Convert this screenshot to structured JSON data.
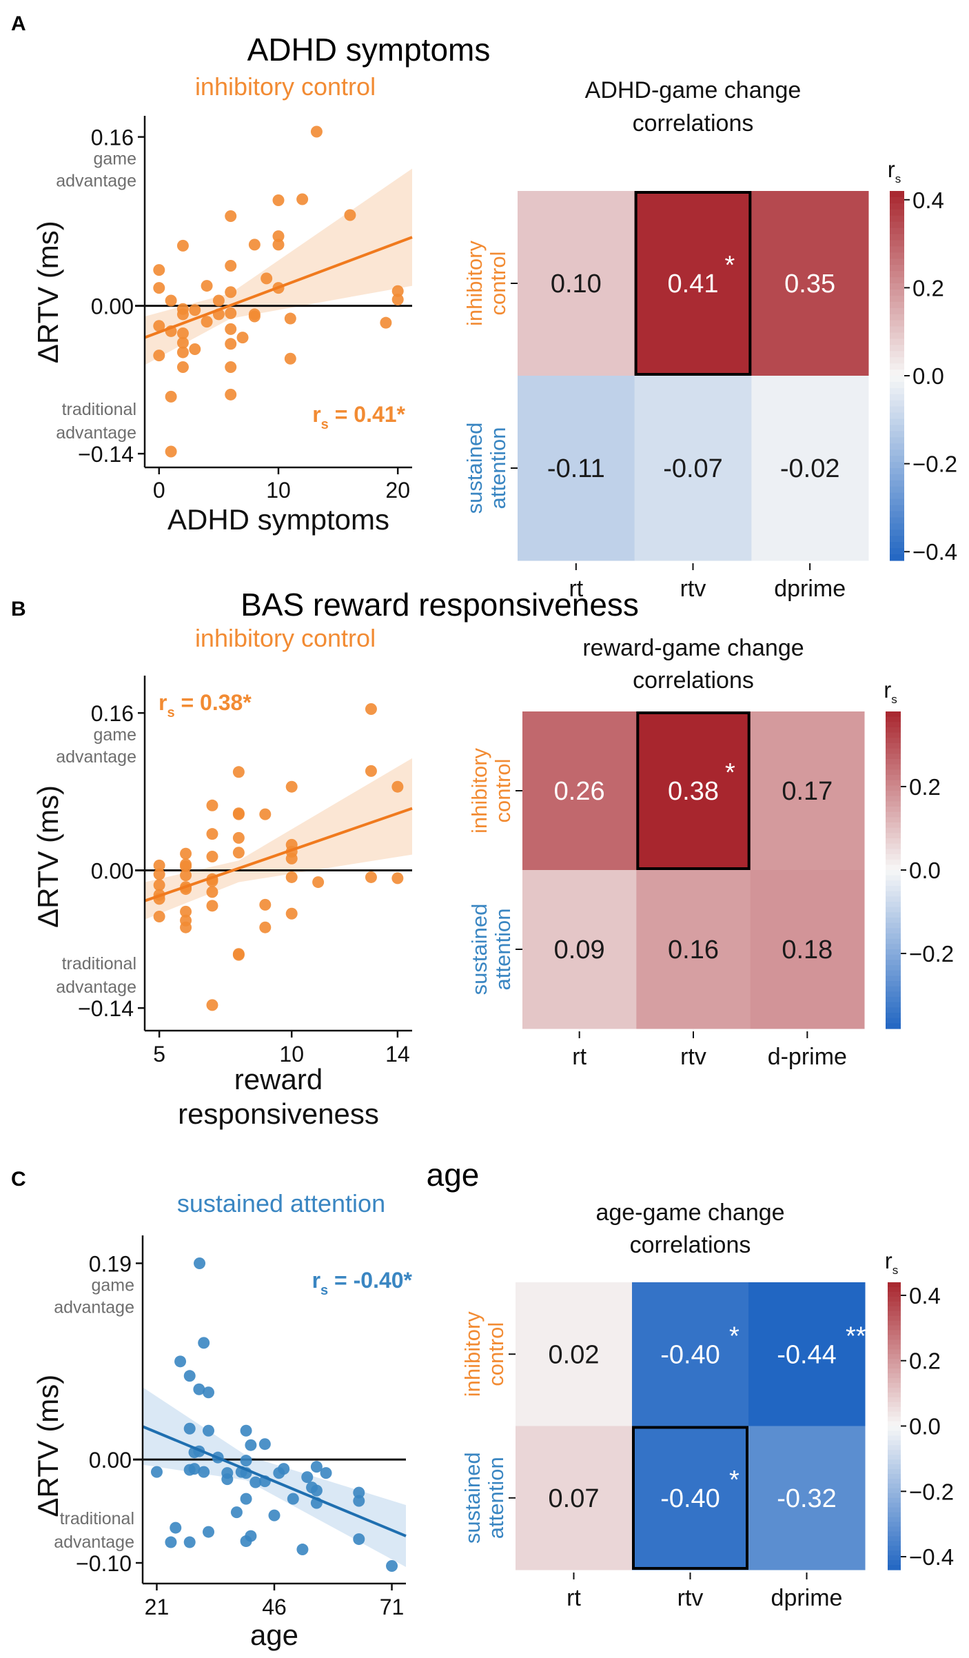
{
  "colors": {
    "orange": "#F28B33",
    "orange_line": "#F07A1E",
    "orange_band": "#FBE3CF",
    "blue": "#3A86C2",
    "blue_line": "#1F6FB0",
    "blue_band": "#D6E6F4",
    "gray_text": "#6E6E6E",
    "heat_neg": "#2166C2",
    "heat_mid": "#F7F7F7",
    "heat_pos": "#A8262E"
  },
  "chart_data": [
    {
      "panel": "A",
      "type": "scatter",
      "panel_title": "ADHD symptoms",
      "title": "inhibitory control",
      "title_color": "orange",
      "xlabel": "ADHD symptoms",
      "ylabel": "ΔRTV (ms)",
      "xticks": [
        0,
        10,
        20
      ],
      "xtick_labels": [
        "0",
        "10",
        "20"
      ],
      "yticks": [
        0.16,
        0.0,
        -0.14
      ],
      "ytick_labels": [
        "0.16",
        "0.00",
        "−0.14"
      ],
      "xlim": [
        -1.2,
        21.2
      ],
      "ylim": [
        -0.153,
        0.18
      ],
      "upper_annotation": [
        "game",
        "advantage"
      ],
      "lower_annotation": [
        "traditional",
        "advantage"
      ],
      "stat_label": "r",
      "stat_sub": "s",
      "stat_value": " = 0.41*",
      "stat_position": "bottom-right",
      "zero_line": true,
      "regression": {
        "x": [
          -1.2,
          21.2
        ],
        "y": [
          -0.03,
          0.065
        ]
      },
      "ci_band": {
        "x": [
          -1.2,
          6,
          21.2
        ],
        "upper": [
          -0.01,
          0.012,
          0.13
        ],
        "lower": [
          -0.056,
          -0.012,
          0.019
        ]
      },
      "points": [
        [
          13.2,
          0.165
        ],
        [
          10,
          0.1
        ],
        [
          12,
          0.101
        ],
        [
          6,
          0.085
        ],
        [
          16,
          0.086
        ],
        [
          10,
          0.066
        ],
        [
          10,
          0.058
        ],
        [
          2,
          0.057
        ],
        [
          8,
          0.058
        ],
        [
          6,
          0.038
        ],
        [
          0,
          0.034
        ],
        [
          9,
          0.026
        ],
        [
          0,
          0.017
        ],
        [
          4,
          0.019
        ],
        [
          10,
          0.017
        ],
        [
          6,
          0.013
        ],
        [
          20,
          0.014
        ],
        [
          20,
          0.006
        ],
        [
          1,
          0.005
        ],
        [
          5,
          0.005
        ],
        [
          2,
          -0.003
        ],
        [
          2,
          -0.008
        ],
        [
          3,
          -0.004
        ],
        [
          5,
          -0.008
        ],
        [
          6,
          -0.007
        ],
        [
          8,
          -0.008
        ],
        [
          8,
          -0.01
        ],
        [
          4,
          -0.015
        ],
        [
          11,
          -0.012
        ],
        [
          0,
          -0.019
        ],
        [
          1,
          -0.024
        ],
        [
          2,
          -0.026
        ],
        [
          19,
          -0.016
        ],
        [
          6,
          -0.022
        ],
        [
          7,
          -0.03
        ],
        [
          2,
          -0.035
        ],
        [
          6,
          -0.036
        ],
        [
          3,
          -0.041
        ],
        [
          2,
          -0.044
        ],
        [
          0,
          -0.047
        ],
        [
          11,
          -0.05
        ],
        [
          2,
          -0.058
        ],
        [
          6,
          -0.058
        ],
        [
          1,
          -0.086
        ],
        [
          6,
          -0.084
        ],
        [
          1,
          -0.138
        ]
      ]
    },
    {
      "panel": "A",
      "type": "heatmap",
      "title": [
        "ADHD-game change",
        "correlations"
      ],
      "rows": [
        "inhibitory control",
        "sustained attention"
      ],
      "row_label_lines": [
        [
          "inhibitory",
          "control"
        ],
        [
          "sustained",
          "attention"
        ]
      ],
      "row_colors": [
        "orange",
        "blue"
      ],
      "columns": [
        "rt",
        "rtv",
        "dprime"
      ],
      "values": [
        [
          0.1,
          0.41,
          0.35
        ],
        [
          -0.11,
          -0.07,
          -0.02
        ]
      ],
      "labels": [
        [
          "0.10",
          "0.41",
          "0.35"
        ],
        [
          "-0.11",
          "-0.07",
          "-0.02"
        ]
      ],
      "stars": [
        [
          "",
          "*",
          ""
        ],
        [
          "",
          "",
          ""
        ]
      ],
      "highlight": [
        0,
        1
      ],
      "vlim": [
        -0.42,
        0.42
      ],
      "colorbar_label": "r",
      "colorbar_sub": "s",
      "colorbar_ticks": [
        0.4,
        0.2,
        0.0,
        -0.2,
        -0.4
      ],
      "colorbar_tick_labels": [
        "0.4",
        "0.2",
        "0.0",
        "−0.2",
        "−0.4"
      ]
    },
    {
      "panel": "B",
      "type": "scatter",
      "panel_title": "BAS reward responsiveness",
      "title": "inhibitory control",
      "title_color": "orange",
      "xlabel": "reward",
      "xlabel2": "responsiveness",
      "ylabel": "ΔRTV (ms)",
      "xticks": [
        5,
        10,
        14
      ],
      "xtick_labels": [
        "5",
        "10",
        "14"
      ],
      "yticks": [
        0.16,
        0.0,
        -0.14
      ],
      "ytick_labels": [
        "0.16",
        "0.00",
        "−0.14"
      ],
      "xlim": [
        4.45,
        14.55
      ],
      "ylim": [
        -0.163,
        0.198
      ],
      "upper_annotation": [
        "game",
        "advantage"
      ],
      "lower_annotation": [
        "traditional",
        "advantage"
      ],
      "stat_label": "r",
      "stat_sub": "s",
      "stat_value": " = 0.38*",
      "stat_position": "top-left",
      "zero_line": true,
      "regression": {
        "x": [
          4.45,
          14.55
        ],
        "y": [
          -0.031,
          0.063
        ]
      },
      "ci_band": {
        "x": [
          4.45,
          8,
          14.55
        ],
        "upper": [
          -0.012,
          0.01,
          0.114
        ],
        "lower": [
          -0.05,
          -0.012,
          0.016
        ]
      },
      "points": [
        [
          13,
          0.164
        ],
        [
          8,
          0.1
        ],
        [
          13,
          0.101
        ],
        [
          10,
          0.085
        ],
        [
          14,
          0.085
        ],
        [
          7,
          0.066
        ],
        [
          8,
          0.057
        ],
        [
          8,
          0.058
        ],
        [
          9,
          0.057
        ],
        [
          7,
          0.037
        ],
        [
          8,
          0.033
        ],
        [
          8,
          0.018
        ],
        [
          10,
          0.026
        ],
        [
          10,
          0.019
        ],
        [
          10,
          0.012
        ],
        [
          6,
          0.017
        ],
        [
          7,
          0.014
        ],
        [
          5,
          0.005
        ],
        [
          6,
          0.006
        ],
        [
          6,
          0.004
        ],
        [
          5,
          -0.004
        ],
        [
          6,
          -0.005
        ],
        [
          7,
          -0.009
        ],
        [
          7,
          -0.011
        ],
        [
          10,
          -0.007
        ],
        [
          13,
          -0.007
        ],
        [
          14,
          -0.008
        ],
        [
          11,
          -0.012
        ],
        [
          5,
          -0.015
        ],
        [
          6,
          -0.017
        ],
        [
          6,
          -0.019
        ],
        [
          7,
          -0.022
        ],
        [
          5,
          -0.025
        ],
        [
          5,
          -0.029
        ],
        [
          7,
          -0.036
        ],
        [
          9,
          -0.035
        ],
        [
          6,
          -0.042
        ],
        [
          10,
          -0.044
        ],
        [
          5,
          -0.047
        ],
        [
          6,
          -0.051
        ],
        [
          6,
          -0.058
        ],
        [
          9,
          -0.058
        ],
        [
          8,
          -0.085
        ],
        [
          8,
          -0.086
        ],
        [
          7,
          -0.137
        ]
      ]
    },
    {
      "panel": "B",
      "type": "heatmap",
      "title": [
        "reward-game change",
        "correlations"
      ],
      "rows": [
        "inhibitory control",
        "sustained attention"
      ],
      "row_label_lines": [
        [
          "inhibitory",
          "control"
        ],
        [
          "sustained",
          "attention"
        ]
      ],
      "row_colors": [
        "orange",
        "blue"
      ],
      "columns": [
        "rt",
        "rtv",
        "d-prime"
      ],
      "values": [
        [
          0.26,
          0.38,
          0.17
        ],
        [
          0.09,
          0.16,
          0.18
        ]
      ],
      "labels": [
        [
          "0.26",
          "0.38",
          "0.17"
        ],
        [
          "0.09",
          "0.16",
          "0.18"
        ]
      ],
      "stars": [
        [
          "",
          "*",
          ""
        ],
        [
          "",
          "",
          ""
        ]
      ],
      "highlight": [
        0,
        1
      ],
      "vlim": [
        -0.38,
        0.38
      ],
      "colorbar_label": "r",
      "colorbar_sub": "s",
      "colorbar_ticks": [
        0.2,
        0.0,
        -0.2
      ],
      "colorbar_tick_labels": [
        "0.2",
        "0.0",
        "−0.2"
      ]
    },
    {
      "panel": "C",
      "type": "scatter",
      "panel_title": "age",
      "title": "sustained attention",
      "title_color": "blue",
      "xlabel": "age",
      "ylabel": "ΔRTV (ms)",
      "xticks": [
        21,
        46,
        71
      ],
      "xtick_labels": [
        "21",
        "46",
        "71"
      ],
      "yticks": [
        0.19,
        0.0,
        -0.1
      ],
      "ytick_labels": [
        "0.19",
        "0.00",
        "−0.10"
      ],
      "xlim": [
        18,
        74
      ],
      "ylim": [
        -0.12,
        0.217
      ],
      "upper_annotation": [
        "game",
        "advantage"
      ],
      "lower_annotation": [
        "traditional",
        "advantage"
      ],
      "stat_label": "r",
      "stat_sub": "s",
      "stat_value": " = -0.40*",
      "stat_position": "top-right",
      "zero_line": true,
      "regression": {
        "x": [
          18,
          74
        ],
        "y": [
          0.032,
          -0.074
        ]
      },
      "ci_band": {
        "x": [
          18,
          40,
          74
        ],
        "upper": [
          0.07,
          0.004,
          -0.044
        ],
        "lower": [
          -0.005,
          -0.02,
          -0.104
        ]
      },
      "points": [
        [
          30.1,
          0.19
        ],
        [
          31,
          0.113
        ],
        [
          26,
          0.095
        ],
        [
          28,
          0.081
        ],
        [
          30,
          0.068
        ],
        [
          32,
          0.065
        ],
        [
          28,
          0.03
        ],
        [
          32,
          0.028
        ],
        [
          40,
          0.028
        ],
        [
          41,
          0.014
        ],
        [
          44,
          0.015
        ],
        [
          29,
          0.007
        ],
        [
          30,
          0.008
        ],
        [
          34,
          0.002
        ],
        [
          40,
          -0.001
        ],
        [
          21,
          -0.012
        ],
        [
          28,
          -0.01
        ],
        [
          29,
          -0.009
        ],
        [
          31,
          -0.012
        ],
        [
          36,
          -0.013
        ],
        [
          36,
          -0.019
        ],
        [
          39,
          -0.012
        ],
        [
          40,
          -0.013
        ],
        [
          42,
          -0.022
        ],
        [
          44,
          -0.021
        ],
        [
          47,
          -0.013
        ],
        [
          48,
          -0.009
        ],
        [
          53,
          -0.017
        ],
        [
          55,
          -0.007
        ],
        [
          57,
          -0.013
        ],
        [
          54,
          -0.027
        ],
        [
          55,
          -0.03
        ],
        [
          50,
          -0.038
        ],
        [
          55,
          -0.042
        ],
        [
          64,
          -0.032
        ],
        [
          64,
          -0.04
        ],
        [
          40,
          -0.038
        ],
        [
          38,
          -0.051
        ],
        [
          46,
          -0.054
        ],
        [
          25,
          -0.066
        ],
        [
          32,
          -0.07
        ],
        [
          24,
          -0.08
        ],
        [
          28,
          -0.08
        ],
        [
          40,
          -0.079
        ],
        [
          41,
          -0.074
        ],
        [
          52,
          -0.087
        ],
        [
          64,
          -0.077
        ],
        [
          71,
          -0.103
        ]
      ]
    },
    {
      "panel": "C",
      "type": "heatmap",
      "title": [
        "age-game change",
        "correlations"
      ],
      "rows": [
        "inhibitory control",
        "sustained attention"
      ],
      "row_label_lines": [
        [
          "inhibitory",
          "control"
        ],
        [
          "sustained",
          "attention"
        ]
      ],
      "row_colors": [
        "orange",
        "blue"
      ],
      "columns": [
        "rt",
        "rtv",
        "dprime"
      ],
      "values": [
        [
          0.02,
          -0.4,
          -0.44
        ],
        [
          0.07,
          -0.4,
          -0.32
        ]
      ],
      "labels": [
        [
          "0.02",
          "-0.40",
          "-0.44"
        ],
        [
          "0.07",
          "-0.40",
          "-0.32"
        ]
      ],
      "stars": [
        [
          "",
          "*",
          "**"
        ],
        [
          "",
          "*",
          ""
        ]
      ],
      "highlight": [
        1,
        1
      ],
      "vlim": [
        -0.44,
        0.44
      ],
      "colorbar_label": "r",
      "colorbar_sub": "s",
      "colorbar_ticks": [
        0.4,
        0.2,
        0.0,
        -0.2,
        -0.4
      ],
      "colorbar_tick_labels": [
        "0.4",
        "0.2",
        "0.0",
        "−0.2",
        "−0.4"
      ]
    }
  ],
  "panel_labels": [
    "A",
    "B",
    "C"
  ]
}
